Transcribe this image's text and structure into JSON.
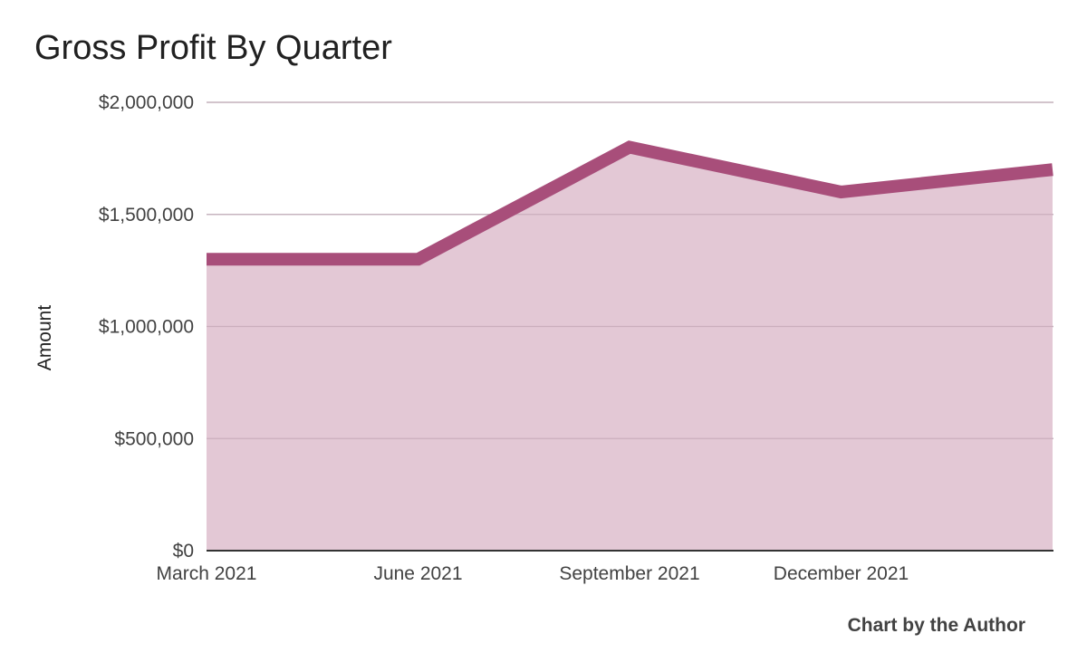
{
  "chart_data": {
    "type": "area",
    "title": "Gross Profit By Quarter",
    "xlabel": "",
    "ylabel": "Amount",
    "x": [
      "March 2021",
      "June 2021",
      "September 2021",
      "December 2021",
      ""
    ],
    "x_tick_labels": [
      "March 2021",
      "June 2021",
      "September 2021",
      "December 2021"
    ],
    "series": [
      {
        "values": [
          1300000,
          1300000,
          1800000,
          1600000,
          1700000
        ]
      }
    ],
    "ylim": [
      0,
      2000000
    ],
    "y_ticks": [
      0,
      500000,
      1000000,
      1500000,
      2000000
    ],
    "y_tick_labels": [
      "$0",
      "$500,000",
      "$1,000,000",
      "$1,500,000",
      "$2,000,000"
    ],
    "grid": true,
    "legend": "none",
    "colors": {
      "line": "#a84e7a",
      "fill": "#e3c8d5",
      "grid": "#cccccc",
      "baseline": "#333333"
    }
  },
  "footer": {
    "credit": "Chart by the Author"
  }
}
